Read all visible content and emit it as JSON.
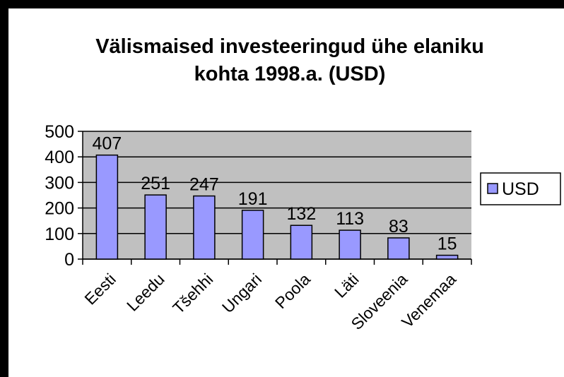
{
  "chart_data": {
    "type": "bar",
    "title": [
      "Välismaised investeeringud ühe elaniku",
      "kohta 1998.a. (USD)"
    ],
    "categories": [
      "Eesti",
      "Leedu",
      "Tšehhi",
      "Ungari",
      "Poola",
      "Läti",
      "Sloveenia",
      "Venemaa"
    ],
    "series": [
      {
        "name": "USD",
        "color": "#9999ff",
        "values": [
          407,
          251,
          247,
          191,
          132,
          113,
          83,
          15
        ]
      }
    ],
    "ylim": [
      0,
      500
    ],
    "yticks": [
      0,
      100,
      200,
      300,
      400,
      500
    ],
    "grid": true,
    "legend": "right"
  }
}
